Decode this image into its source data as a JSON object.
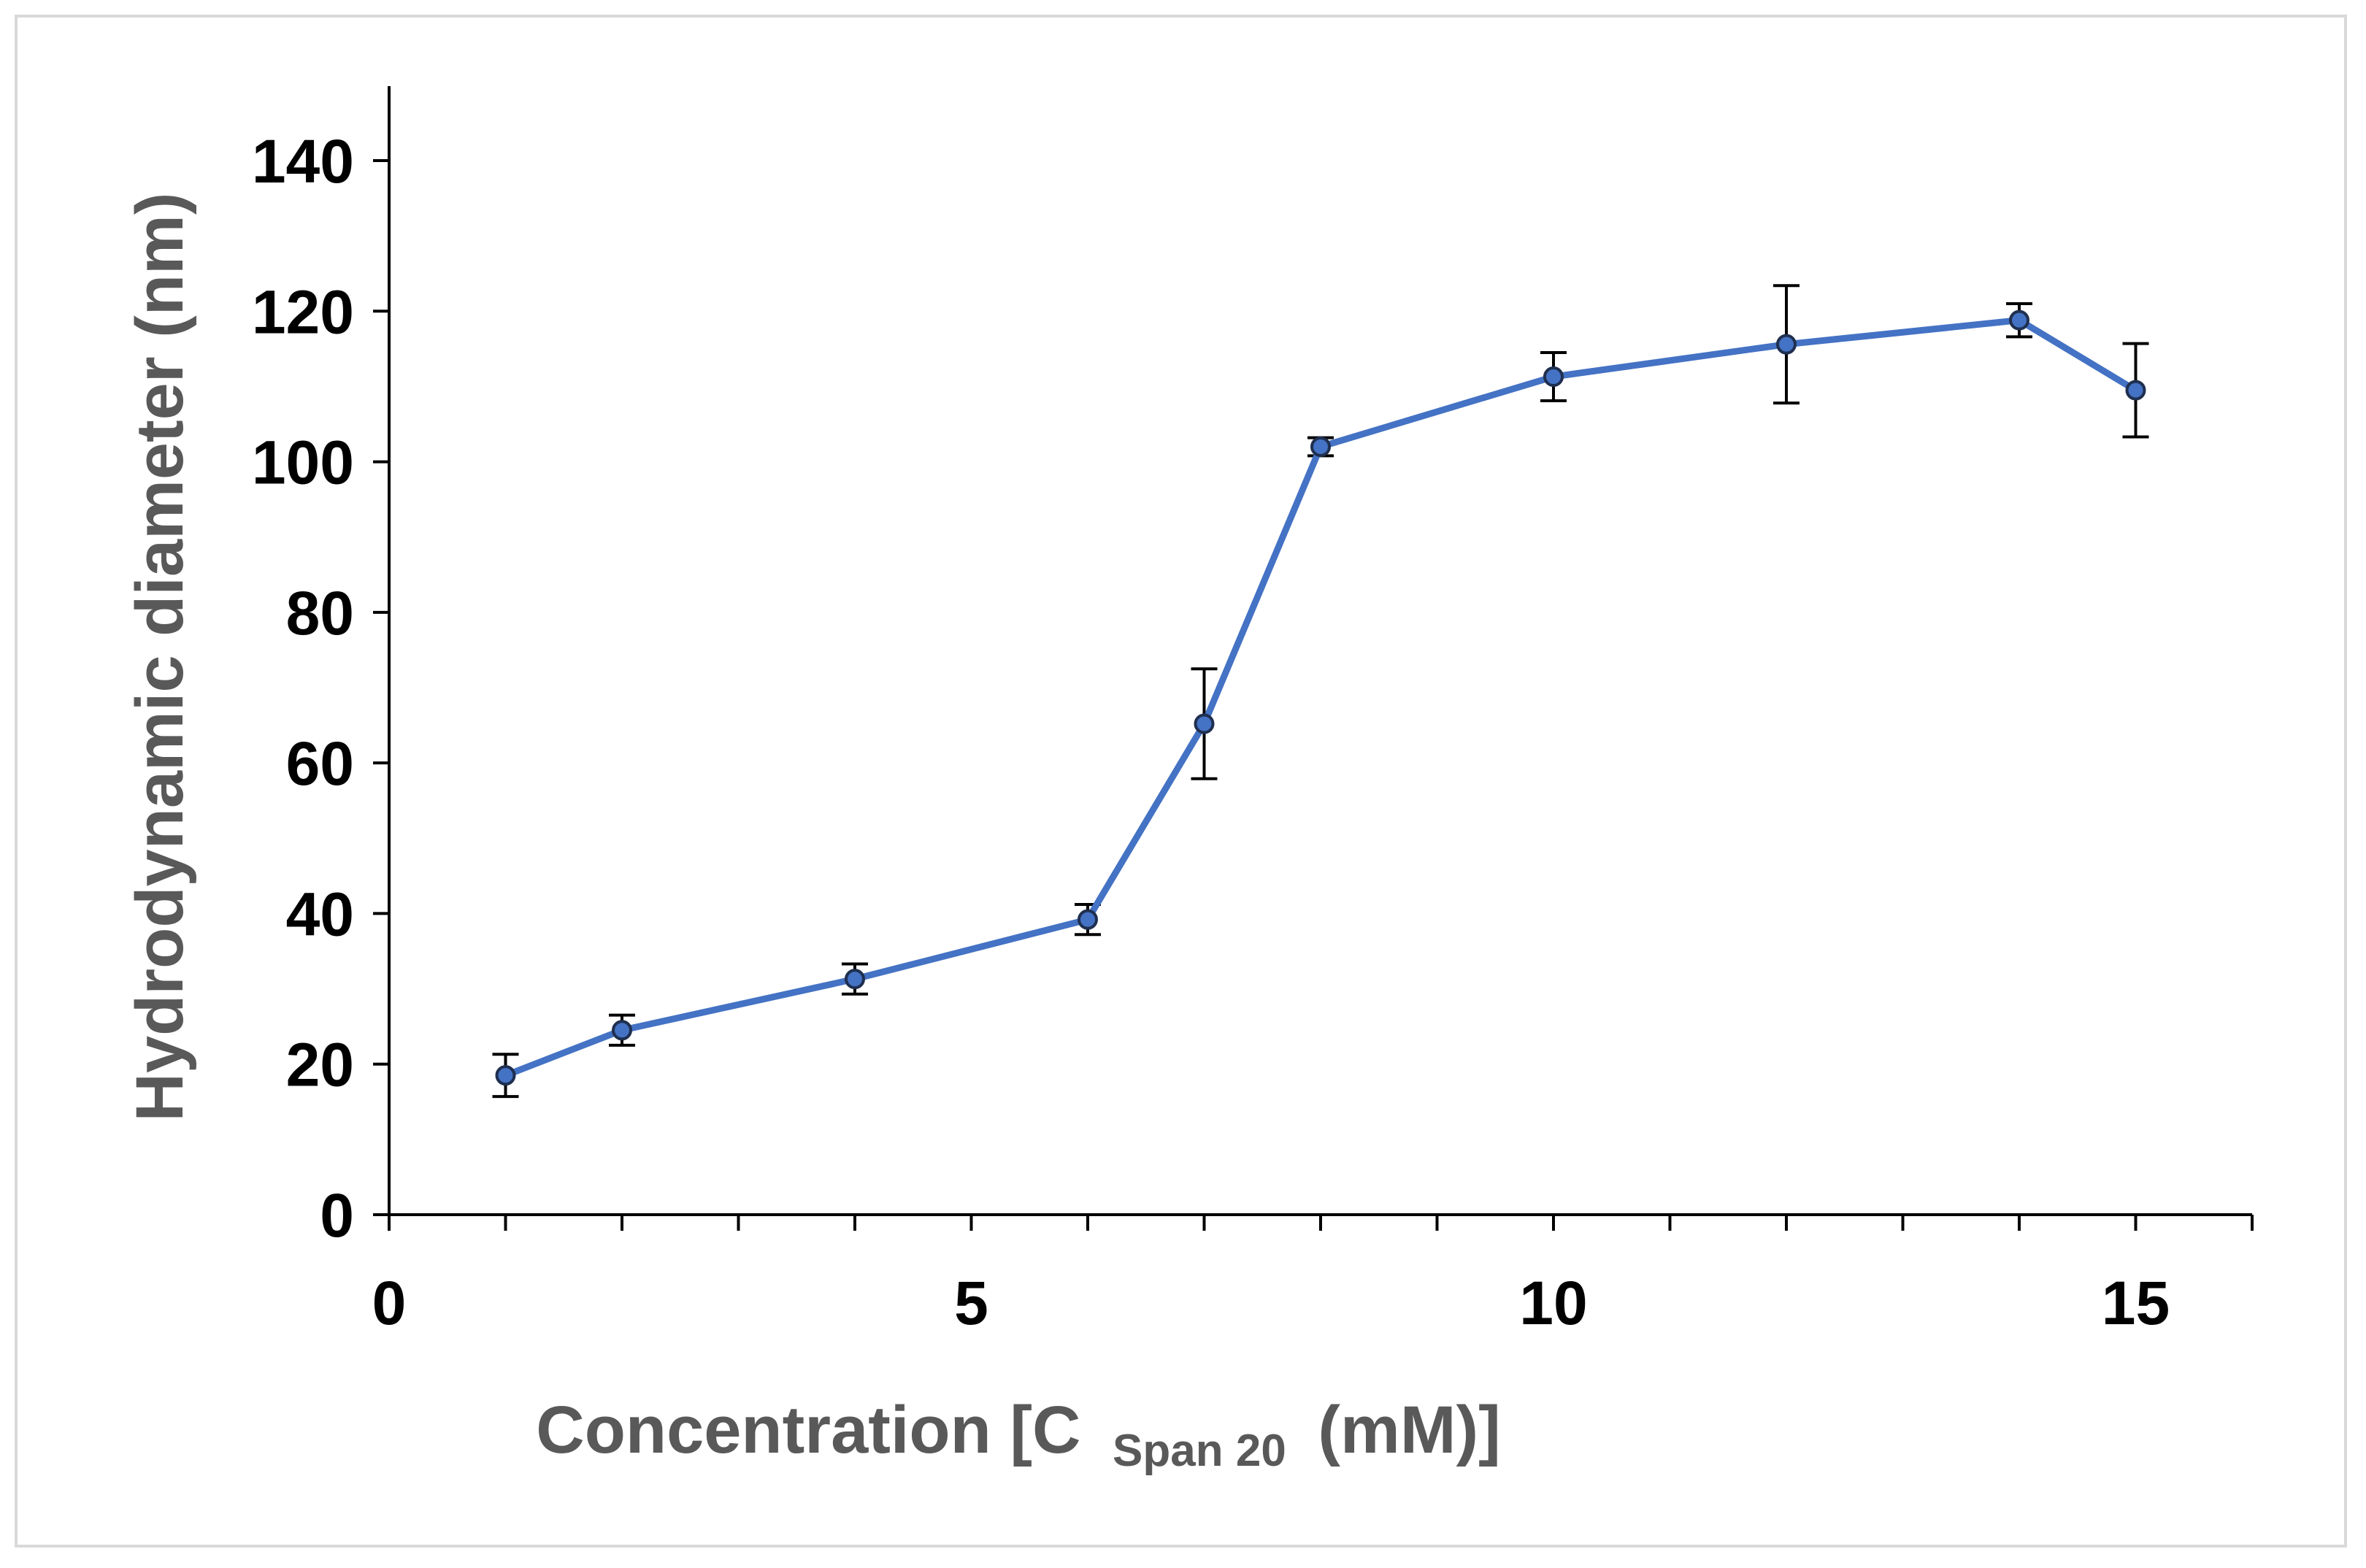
{
  "chart_data": {
    "type": "line",
    "title": "",
    "xlabel": "Concentration [C",
    "xlabel_subscript": "Span 20",
    "xlabel_suffix": "(mM)]",
    "ylabel": "Hydrodynamic diameter (nm)",
    "xlim": [
      0,
      16
    ],
    "ylim": [
      0,
      150
    ],
    "x_ticks": [
      0,
      5,
      10,
      15
    ],
    "x_minor_step": 1,
    "y_ticks": [
      0,
      20,
      40,
      60,
      80,
      100,
      120,
      140
    ],
    "grid": false,
    "legend": "none",
    "series": [
      {
        "name": "Hydrodynamic diameter",
        "color": "#4472C4",
        "marker_edge": "#1F2F4F",
        "x": [
          1,
          2,
          4,
          6,
          7,
          8,
          10,
          12,
          14,
          15
        ],
        "y": [
          18.5,
          24.5,
          31.3,
          39.2,
          65.2,
          102.0,
          111.3,
          115.6,
          118.8,
          109.5
        ],
        "error": [
          2.8,
          2.0,
          2.0,
          2.0,
          7.3,
          1.2,
          3.2,
          7.8,
          2.2,
          6.2
        ]
      }
    ]
  }
}
